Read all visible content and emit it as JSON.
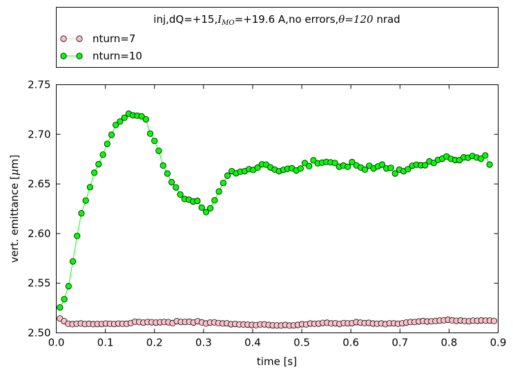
{
  "chart_data": {
    "type": "line",
    "title": "",
    "legend": {
      "placement": "above-plot",
      "title_parts": [
        "inj,dQ=+15,",
        "I",
        "MO",
        "=+19.6 A,no errors,",
        "θ",
        "=",
        "120",
        " nrad"
      ]
    },
    "xlabel": "time [s]",
    "ylabel_parts": [
      "vert. emittance [",
      "μ",
      "m]"
    ],
    "xlim": [
      0.0,
      0.9
    ],
    "ylim": [
      2.5,
      2.75
    ],
    "xticks": [
      "0.0",
      "0.1",
      "0.2",
      "0.3",
      "0.4",
      "0.5",
      "0.6",
      "0.7",
      "0.8",
      "0.9"
    ],
    "yticks": [
      "2.50",
      "2.55",
      "2.60",
      "2.65",
      "2.70",
      "2.75"
    ],
    "grid": false,
    "series": [
      {
        "name": "nturn=7",
        "color": "#ffc0cb",
        "marker": "circle",
        "values": [
          2.5145,
          2.5118,
          2.5092,
          2.5088,
          2.5092,
          2.5095,
          2.5089,
          2.5091,
          2.5088,
          2.5089,
          2.5089,
          2.5093,
          2.5092,
          2.5089,
          2.5093,
          2.5092,
          2.5091,
          2.5099,
          2.5113,
          2.5109,
          2.5103,
          2.5109,
          2.5107,
          2.5104,
          2.5107,
          2.5109,
          2.5107,
          2.5098,
          2.5118,
          2.511,
          2.511,
          2.5112,
          2.5104,
          2.5117,
          2.5105,
          2.5095,
          2.5104,
          2.5106,
          2.5099,
          2.5095,
          2.5096,
          2.5087,
          2.509,
          2.5085,
          2.5084,
          2.5083,
          2.508,
          2.5078,
          2.5085,
          2.5086,
          2.508,
          2.5076,
          2.5075,
          2.5074,
          2.508,
          2.5074,
          2.5075,
          2.508,
          2.5087,
          2.5085,
          2.5094,
          2.5092,
          2.5093,
          2.51,
          2.5102,
          2.5095,
          2.5097,
          2.509,
          2.5099,
          2.5096,
          2.5097,
          2.5108,
          2.5103,
          2.5098,
          2.5101,
          2.5094,
          2.5092,
          2.5095,
          2.5088,
          2.5096,
          2.5096,
          2.5092,
          2.5096,
          2.5104,
          2.5109,
          2.5109,
          2.5115,
          2.5119,
          2.5115,
          2.5116,
          2.5119,
          2.5124,
          2.5127,
          2.5132,
          2.5126,
          2.5121,
          2.5125,
          2.512,
          2.5117,
          2.5123,
          2.5121,
          2.5125,
          2.5123,
          2.5124,
          2.512
        ]
      },
      {
        "name": "nturn=10",
        "color": "#00ff00",
        "marker": "circle",
        "values": [
          2.5256,
          2.5339,
          2.547,
          2.572,
          2.5976,
          2.6205,
          2.6333,
          2.6468,
          2.6613,
          2.6699,
          2.6795,
          2.6904,
          2.6995,
          2.7094,
          2.7129,
          2.7167,
          2.7208,
          2.7191,
          2.7188,
          2.7182,
          2.7151,
          2.7007,
          2.6934,
          2.6834,
          2.6686,
          2.6605,
          2.6518,
          2.6465,
          2.6394,
          2.6348,
          2.6341,
          2.6323,
          2.633,
          2.6262,
          2.6216,
          2.6256,
          2.6334,
          2.6424,
          2.651,
          2.6584,
          2.6629,
          2.6607,
          2.6624,
          2.6629,
          2.6649,
          2.6641,
          2.6665,
          2.6698,
          2.6695,
          2.6667,
          2.6645,
          2.6628,
          2.6642,
          2.6653,
          2.6659,
          2.6636,
          2.6655,
          2.671,
          2.6679,
          2.6738,
          2.6708,
          2.6715,
          2.6722,
          2.6718,
          2.6711,
          2.6674,
          2.6686,
          2.6673,
          2.6721,
          2.6687,
          2.6666,
          2.6645,
          2.6683,
          2.6657,
          2.6677,
          2.6696,
          2.6656,
          2.6662,
          2.6605,
          2.6645,
          2.6628,
          2.6648,
          2.6684,
          2.6694,
          2.6689,
          2.6689,
          2.6728,
          2.6712,
          2.6742,
          2.6755,
          2.6777,
          2.6753,
          2.6741,
          2.674,
          2.6769,
          2.6764,
          2.6782,
          2.6766,
          2.6754,
          2.6787,
          2.6696
        ],
        "x_start": 0.0075,
        "x_step": 0.00875
      }
    ],
    "x_start": 0.0075,
    "x_step": 0.0085
  }
}
